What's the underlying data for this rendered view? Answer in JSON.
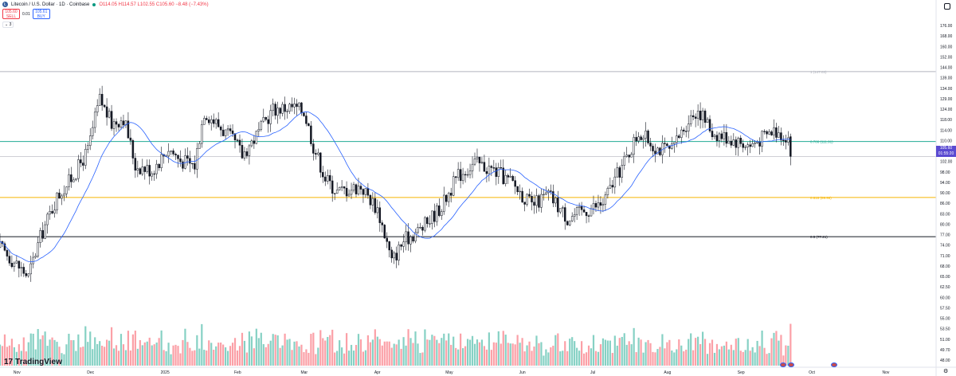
{
  "header": {
    "symbol_title": "Litecoin / U.S. Dollar · 1D · Coinbase",
    "ohlc": "O114.05 H114.57 L102.55 C105.60 −8.48 (−7.43%)",
    "logo_char": "Ł",
    "live_dot_color": "#089981"
  },
  "trade": {
    "sell_price": "105.60",
    "sell_label": "SELL",
    "spread": "0.01",
    "buy_price": "105.61",
    "buy_label": "BUY"
  },
  "indicators_toggle": "⌄ 3",
  "price_tag": {
    "price": "105.60",
    "countdown": "01:55:20"
  },
  "branding": {
    "name": "TradingView",
    "mark": "17"
  },
  "chart_data": {
    "type": "candlestick",
    "y_scale": "log",
    "ylim": [
      47,
      180
    ],
    "price_axis_ticks": [
      "176.00",
      "168.00",
      "160.00",
      "152.00",
      "144.00",
      "139.00",
      "134.00",
      "129.00",
      "124.00",
      "118.00",
      "114.00",
      "110.00",
      "106.00",
      "102.00",
      "98.00",
      "94.00",
      "90.00",
      "86.00",
      "83.00",
      "80.00",
      "77.00",
      "74.00",
      "71.00",
      "68.00",
      "65.00",
      "62.50",
      "60.00",
      "57.50",
      "55.00",
      "53.50",
      "51.00",
      "49.70",
      "48.00"
    ],
    "time_axis_ticks": [
      "Nov",
      "Dec",
      "2025",
      "Feb",
      "Mar",
      "Apr",
      "May",
      "Jun",
      "Jul",
      "Aug",
      "Sep",
      "Oct",
      "Nov"
    ],
    "fib_levels": [
      {
        "label": "1 (147.03)",
        "price": 147.03,
        "color": "#b2b5be"
      },
      {
        "label": "0.786 (111.91)",
        "price": 111.91,
        "color": "#22ab94"
      },
      {
        "label": "0.618 (89.98)",
        "price": 89.98,
        "color": "#f7b500"
      },
      {
        "label": "0.5 (77.21)",
        "price": 77.21,
        "color": "#131722"
      }
    ],
    "last_price": 105.6,
    "series": [
      {
        "name": "LTCUSD",
        "kind": "candles",
        "up_color": "#131722",
        "down_color": "#131722"
      },
      {
        "name": "MA",
        "kind": "line",
        "color": "#2962ff"
      },
      {
        "name": "Volume",
        "kind": "bars",
        "up_color": "#22ab94",
        "down_color": "#f7525f"
      }
    ],
    "anchors": [
      [
        "2024-10-24",
        74
      ],
      [
        "2024-11-05",
        66
      ],
      [
        "2024-11-10",
        77
      ],
      [
        "2024-11-17",
        90
      ],
      [
        "2024-11-24",
        98
      ],
      [
        "2024-11-30",
        108
      ],
      [
        "2024-12-05",
        132
      ],
      [
        "2024-12-10",
        120
      ],
      [
        "2024-12-15",
        123
      ],
      [
        "2024-12-20",
        102
      ],
      [
        "2024-12-27",
        100
      ],
      [
        "2025-01-03",
        109
      ],
      [
        "2025-01-08",
        104
      ],
      [
        "2025-01-14",
        102
      ],
      [
        "2025-01-18",
        126
      ],
      [
        "2025-01-25",
        118
      ],
      [
        "2025-02-01",
        110
      ],
      [
        "2025-02-03",
        106
      ],
      [
        "2025-02-10",
        116
      ],
      [
        "2025-02-16",
        127
      ],
      [
        "2025-02-24",
        128
      ],
      [
        "2025-03-01",
        126
      ],
      [
        "2025-03-05",
        110
      ],
      [
        "2025-03-10",
        97
      ],
      [
        "2025-03-15",
        92
      ],
      [
        "2025-03-25",
        94
      ],
      [
        "2025-04-01",
        86
      ],
      [
        "2025-04-07",
        70
      ],
      [
        "2025-04-12",
        76
      ],
      [
        "2025-04-20",
        80
      ],
      [
        "2025-04-28",
        87
      ],
      [
        "2025-05-05",
        98
      ],
      [
        "2025-05-12",
        103
      ],
      [
        "2025-05-20",
        100
      ],
      [
        "2025-05-28",
        95
      ],
      [
        "2025-06-05",
        87
      ],
      [
        "2025-06-12",
        91
      ],
      [
        "2025-06-20",
        83
      ],
      [
        "2025-06-26",
        85
      ],
      [
        "2025-07-05",
        88
      ],
      [
        "2025-07-15",
        105
      ],
      [
        "2025-07-20",
        116
      ],
      [
        "2025-07-28",
        109
      ],
      [
        "2025-08-03",
        108
      ],
      [
        "2025-08-10",
        122
      ],
      [
        "2025-08-14",
        127
      ],
      [
        "2025-08-20",
        116
      ],
      [
        "2025-08-28",
        113
      ],
      [
        "2025-09-05",
        110
      ],
      [
        "2025-09-15",
        117
      ],
      [
        "2025-09-21",
        114
      ],
      [
        "2025-09-22",
        105.6
      ]
    ]
  }
}
